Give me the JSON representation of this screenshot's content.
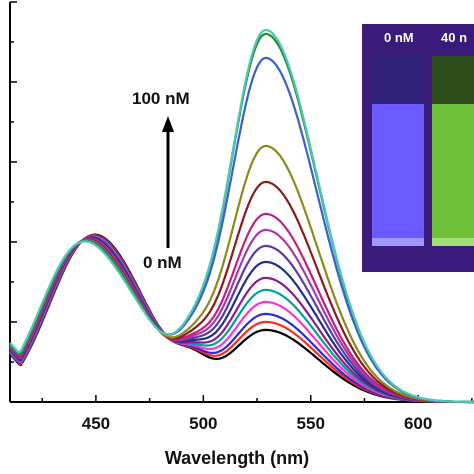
{
  "chart_data": {
    "type": "line",
    "xlabel": "Wavelength (nm)",
    "ylabel": "",
    "xlim": [
      410,
      626
    ],
    "ylim": [
      0,
      1.0
    ],
    "x_ticks": [
      450,
      500,
      550,
      600
    ],
    "x_tick_labels": [
      "450",
      "500",
      "550",
      "600"
    ],
    "grid": false,
    "annotations": {
      "arrow_top": "100 nM",
      "arrow_bottom": "0 nM"
    },
    "peak1_nm": 445,
    "peak2_nm": 529,
    "valley_nm": 495,
    "series": [
      {
        "color": "#000000",
        "peak1": 0.4,
        "peak2": 0.18
      },
      {
        "color": "#ff2a1a",
        "peak1": 0.4,
        "peak2": 0.2
      },
      {
        "color": "#2b2bd9",
        "peak1": 0.4,
        "peak2": 0.22
      },
      {
        "color": "#ff33cc",
        "peak1": 0.4,
        "peak2": 0.25
      },
      {
        "color": "#00a0a0",
        "peak1": 0.4,
        "peak2": 0.28
      },
      {
        "color": "#8b1a8b",
        "peak1": 0.4,
        "peak2": 0.31
      },
      {
        "color": "#1f2f8f",
        "peak1": 0.4,
        "peak2": 0.35
      },
      {
        "color": "#5a3aa8",
        "peak1": 0.4,
        "peak2": 0.39
      },
      {
        "color": "#a83aa8",
        "peak1": 0.4,
        "peak2": 0.43
      },
      {
        "color": "#c2207e",
        "peak1": 0.4,
        "peak2": 0.47
      },
      {
        "color": "#8b1a1a",
        "peak1": 0.4,
        "peak2": 0.55
      },
      {
        "color": "#8a8a1a",
        "peak1": 0.4,
        "peak2": 0.64
      },
      {
        "color": "#3a5fd0",
        "peak1": 0.4,
        "peak2": 0.86
      },
      {
        "color": "#2a8a2a",
        "peak1": 0.4,
        "peak2": 0.92
      },
      {
        "color": "#4dc8b8",
        "peak1": 0.4,
        "peak2": 0.93
      }
    ]
  },
  "inset": {
    "label_left": "0 nM",
    "label_right": "40 n",
    "colors": {
      "background": "#3a1a7a",
      "cuvette_left": "#6a5aff",
      "cuvette_right": "#6fbf3a"
    }
  }
}
